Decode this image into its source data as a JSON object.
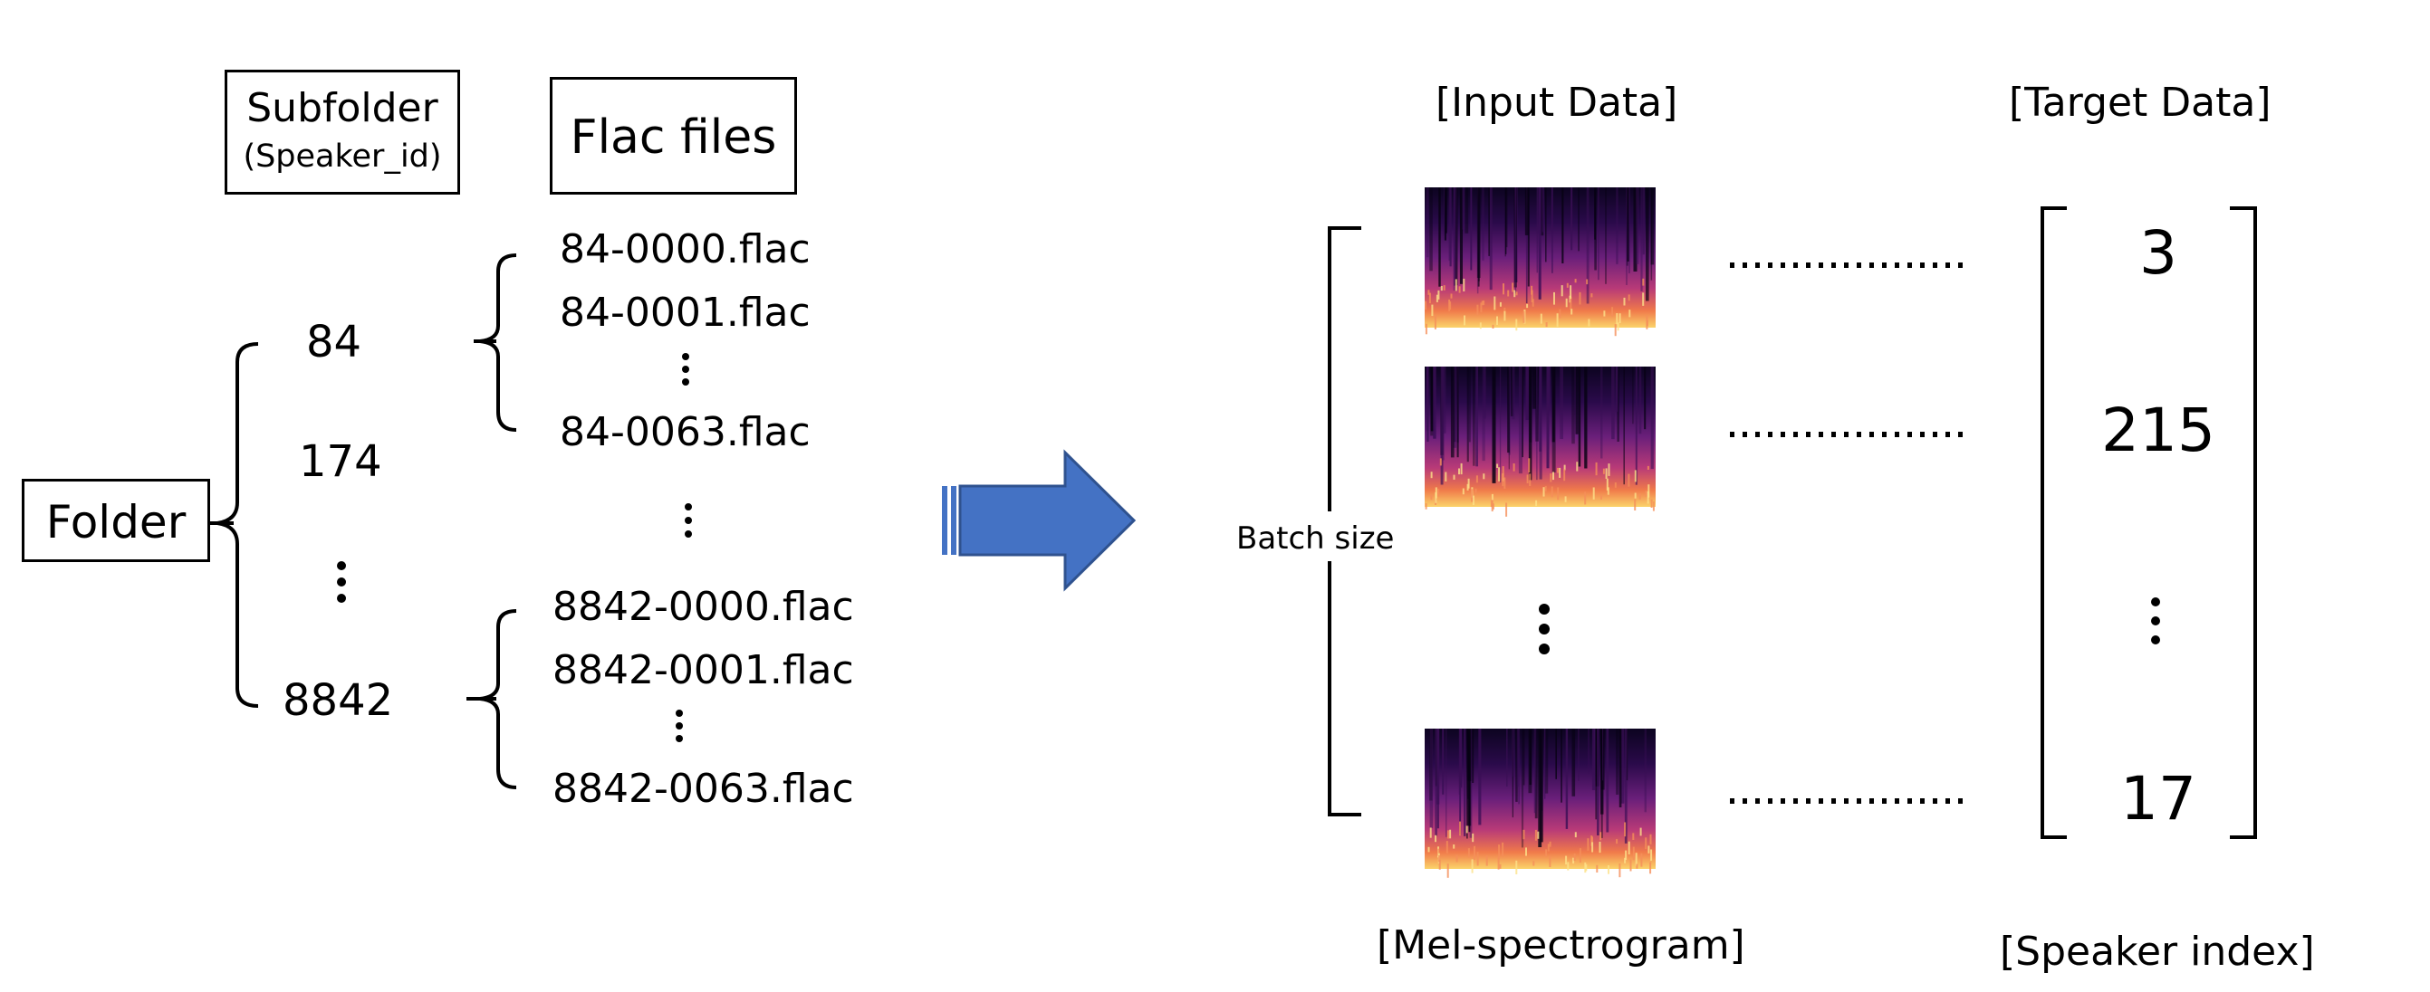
{
  "left": {
    "folder_label": "Folder",
    "subfolder_header": {
      "title": "Subfolder",
      "subtitle": "(Speaker_id)"
    },
    "flac_header": "Flac files",
    "speaker_ids": [
      "84",
      "174",
      "8842"
    ],
    "group_84_files": [
      "84-0000.flac",
      "84-0001.flac",
      "84-0063.flac"
    ],
    "group_8842_files": [
      "8842-0000.flac",
      "8842-0001.flac",
      "8842-0063.flac"
    ]
  },
  "right": {
    "input_header": "[Input Data]",
    "target_header": "[Target Data]",
    "batch_label": "Batch size",
    "targets": [
      "3",
      "215",
      "17"
    ],
    "input_caption": "[Mel-spectrogram]",
    "target_caption": "[Speaker index]"
  },
  "colors": {
    "arrow_fill": "#4472C4",
    "arrow_stroke": "#2F528F",
    "spectrogram_low": "#14062e",
    "spectrogram_high": "#f7c04a"
  },
  "icons": {
    "transform_arrow": "right-arrow-icon",
    "ellipsis": "vertical-ellipsis-icon"
  }
}
